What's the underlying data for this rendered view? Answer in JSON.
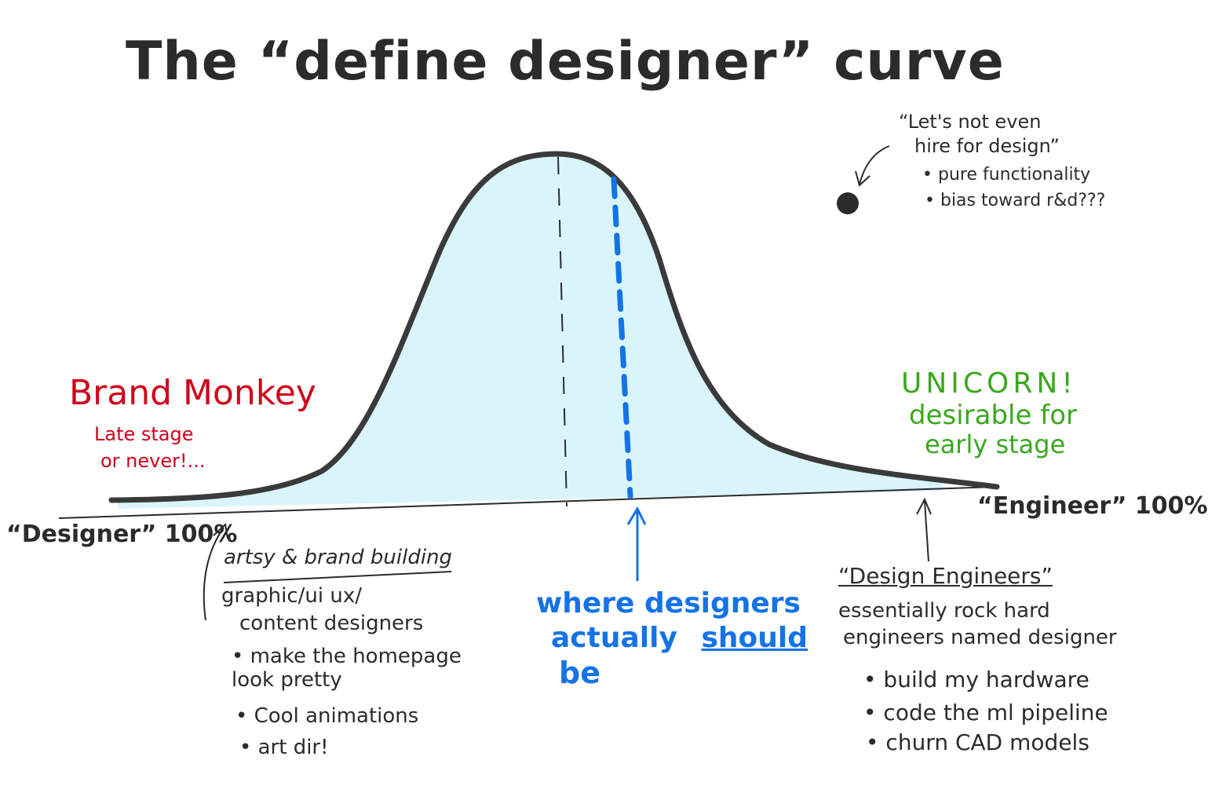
{
  "title": "The “define designer” curve",
  "colors": {
    "ink": "#2b2b2b",
    "fill": "#d9f5fb",
    "brand_monkey": "#d0021b",
    "unicorn": "#3aa81e",
    "should_be": "#1473e6"
  },
  "axis": {
    "left_label": "“Designer” 100%",
    "right_label": "“Engineer” 100%"
  },
  "top_note": {
    "quote_line1": "“Let's not even",
    "quote_line2": "hire for design”",
    "bullets": [
      "pure functionality",
      "bias toward r&d???"
    ]
  },
  "brand_monkey": {
    "title": "Brand Monkey",
    "line1": "Late stage",
    "line2": "or never!..."
  },
  "unicorn": {
    "title": "UNICORN!",
    "line1": "desirable for",
    "line2": "early stage"
  },
  "left_group": {
    "heading": "artsy & brand building",
    "line1": "graphic/ui ux/",
    "line2": "content designers",
    "bullets": [
      "make the homepage look pretty",
      "Cool animations",
      "art dir!"
    ]
  },
  "middle": {
    "line1": "where designers",
    "line2_a": "actually",
    "line2_b": "should",
    "line3": "be"
  },
  "right_group": {
    "heading": "“Design Engineers”",
    "line1": "essentially rock hard",
    "line2": "engineers named designer",
    "bullets": [
      "build my hardware",
      "code the ml pipeline",
      "churn CAD models"
    ]
  }
}
